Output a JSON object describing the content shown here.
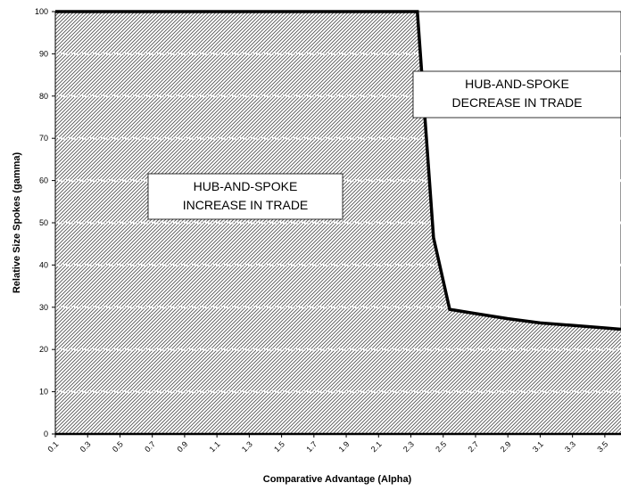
{
  "chart_data": {
    "type": "area",
    "xlabel": "Comparative Advantage (Alpha)",
    "ylabel": "Relative Size Spokes (gamma)",
    "x_ticks": [
      "0.1",
      "0.3",
      "0.5",
      "0.7",
      "0.9",
      "1.1",
      "1.3",
      "1.5",
      "1.7",
      "1.9",
      "2.1",
      "2.3",
      "2.5",
      "2.7",
      "2.9",
      "3.1",
      "3.3",
      "3.5"
    ],
    "y_ticks": [
      0,
      10,
      20,
      30,
      40,
      50,
      60,
      70,
      80,
      90,
      100
    ],
    "xlim": [
      0.1,
      3.6
    ],
    "ylim": [
      0,
      100
    ],
    "series": [
      {
        "x": [
          0.1,
          2.34,
          2.44,
          2.54,
          2.7,
          2.9,
          3.1,
          3.3,
          3.5,
          3.6
        ],
        "y": [
          100,
          100,
          46.5,
          29.5,
          28.5,
          27.3,
          26.3,
          25.7,
          25.1,
          24.8
        ]
      }
    ],
    "annotations": [
      {
        "lines": [
          "HUB-AND-SPOKE",
          "INCREASE IN TRADE"
        ]
      },
      {
        "lines": [
          "HUB-AND-SPOKE",
          "DECREASE IN TRADE"
        ]
      }
    ],
    "grid": "horizontal dotted",
    "fill": "hatched"
  }
}
